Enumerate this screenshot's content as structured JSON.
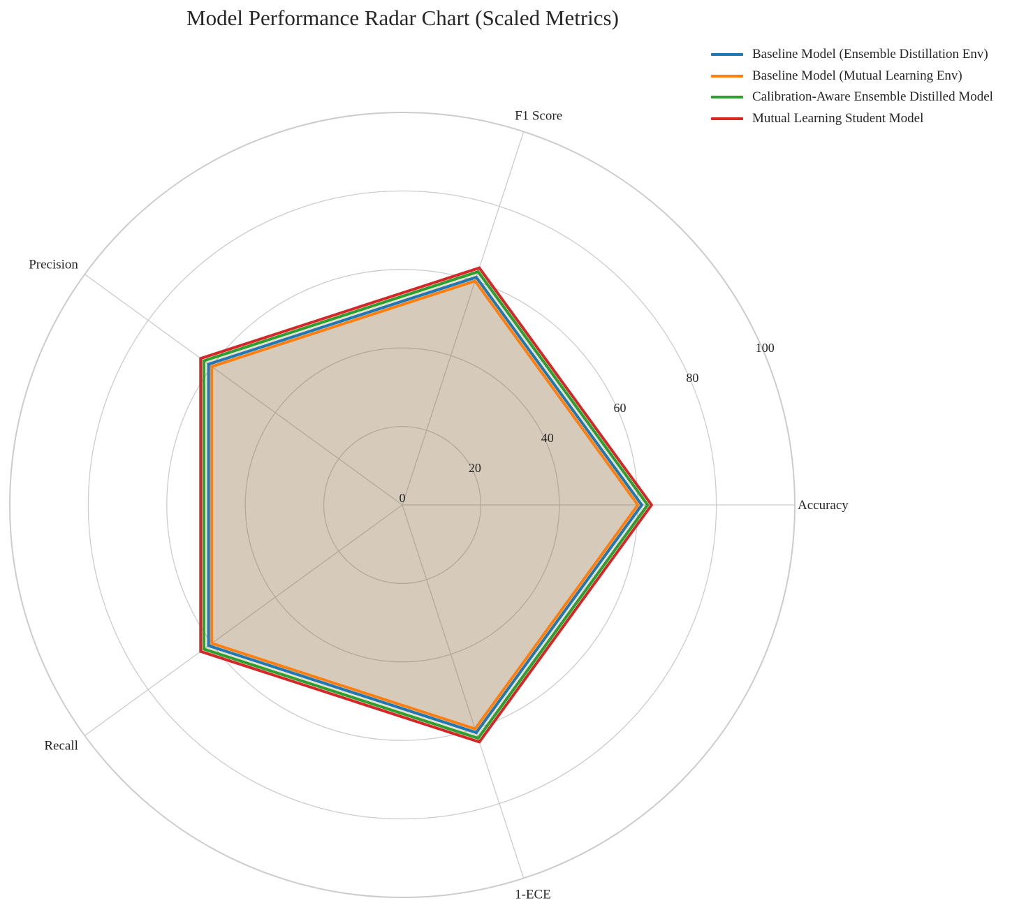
{
  "chart_data": {
    "type": "radar",
    "title": "Model Performance Radar Chart (Scaled Metrics)",
    "axes": [
      "Accuracy",
      "F1 Score",
      "Precision",
      "Recall",
      "1-ECE"
    ],
    "r_ticks": [
      "0",
      "20",
      "40",
      "60",
      "80",
      "100"
    ],
    "rlim": [
      0,
      100
    ],
    "grid": true,
    "legend_position": "top-right",
    "series": [
      {
        "name": "Baseline Model (Ensemble Distillation Env)",
        "color": "#1f77b4",
        "values": [
          61,
          61,
          61,
          61,
          61
        ]
      },
      {
        "name": "Baseline Model (Mutual Learning Env)",
        "color": "#ff7f0e",
        "values": [
          60,
          60,
          60,
          60,
          60
        ]
      },
      {
        "name": "Calibration-Aware Ensemble Distilled Model",
        "color": "#2ca02c",
        "values": [
          62.5,
          62.5,
          62.5,
          62.5,
          62.5
        ]
      },
      {
        "name": "Mutual Learning Student Model",
        "color": "#d62728",
        "values": [
          63.5,
          63.5,
          63.5,
          63.5,
          63.5
        ]
      }
    ]
  }
}
